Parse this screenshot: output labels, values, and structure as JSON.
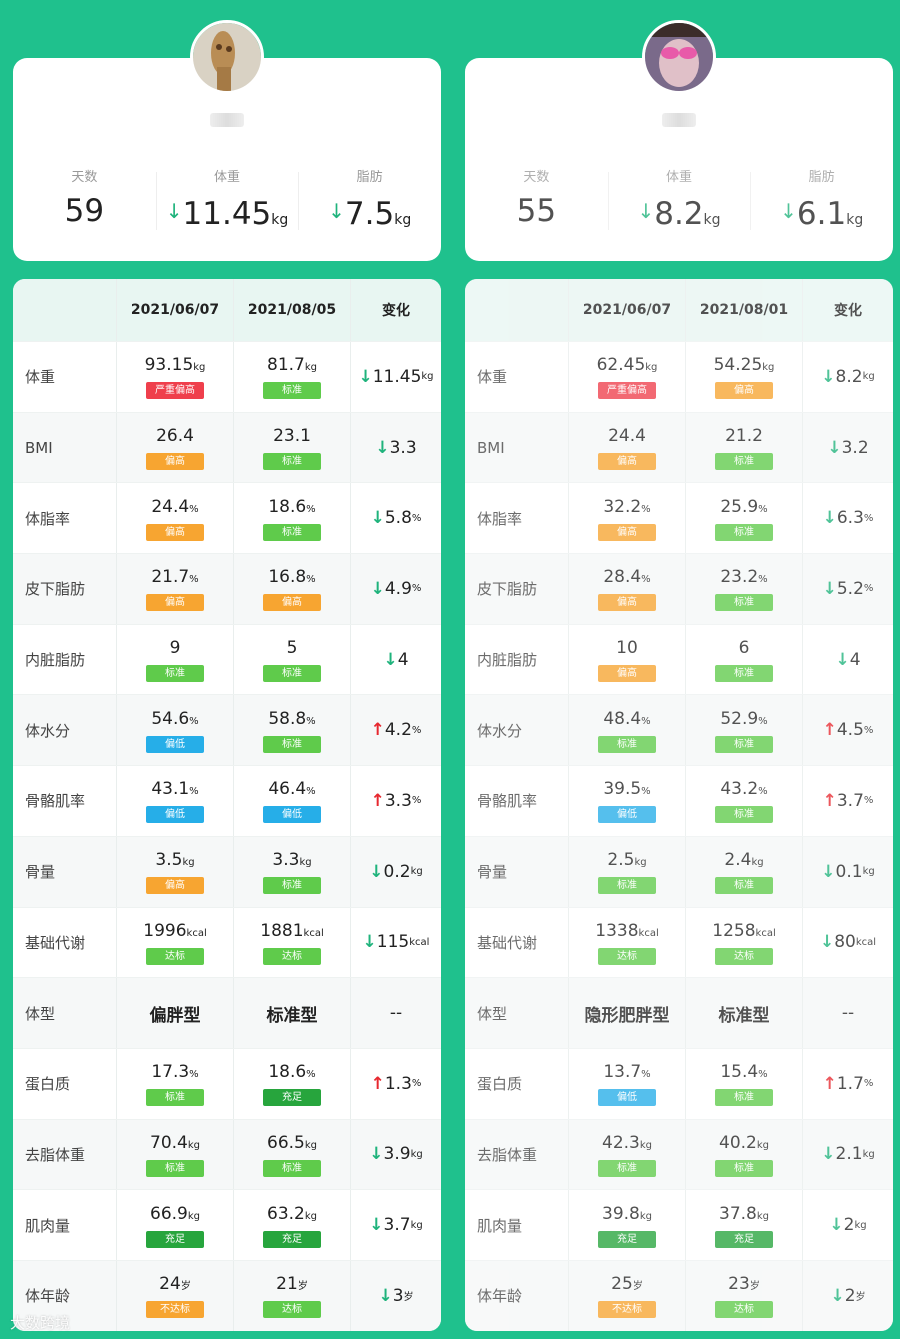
{
  "watermark": "大数跨境",
  "panels": [
    {
      "summary": {
        "days_label": "天数",
        "days_value": "59",
        "weight_label": "体重",
        "weight_value": "11.45",
        "weight_unit": "kg",
        "fat_label": "脂肪",
        "fat_value": "7.5",
        "fat_unit": "kg"
      },
      "header": {
        "date1": "2021/06/07",
        "date2": "2021/08/05",
        "change": "变化"
      },
      "rows": [
        {
          "label": "体重",
          "v1": "93.15",
          "u1": "kg",
          "b1": "严重偏高",
          "c1": "red",
          "v2": "81.7",
          "u2": "kg",
          "b2": "标准",
          "c2": "green",
          "dir": "down",
          "d": "11.45",
          "du": "kg"
        },
        {
          "label": "BMI",
          "v1": "26.4",
          "u1": "",
          "b1": "偏高",
          "c1": "orange",
          "v2": "23.1",
          "u2": "",
          "b2": "标准",
          "c2": "green",
          "dir": "down",
          "d": "3.3",
          "du": ""
        },
        {
          "label": "体脂率",
          "v1": "24.4",
          "u1": "%",
          "b1": "偏高",
          "c1": "orange",
          "v2": "18.6",
          "u2": "%",
          "b2": "标准",
          "c2": "green",
          "dir": "down",
          "d": "5.8",
          "du": "%"
        },
        {
          "label": "皮下脂肪",
          "v1": "21.7",
          "u1": "%",
          "b1": "偏高",
          "c1": "orange",
          "v2": "16.8",
          "u2": "%",
          "b2": "偏高",
          "c2": "orange",
          "dir": "down",
          "d": "4.9",
          "du": "%"
        },
        {
          "label": "内脏脂肪",
          "v1": "9",
          "u1": "",
          "b1": "标准",
          "c1": "green",
          "v2": "5",
          "u2": "",
          "b2": "标准",
          "c2": "green",
          "dir": "down",
          "d": "4",
          "du": ""
        },
        {
          "label": "体水分",
          "v1": "54.6",
          "u1": "%",
          "b1": "偏低",
          "c1": "blue",
          "v2": "58.8",
          "u2": "%",
          "b2": "标准",
          "c2": "green",
          "dir": "up",
          "d": "4.2",
          "du": "%"
        },
        {
          "label": "骨骼肌率",
          "v1": "43.1",
          "u1": "%",
          "b1": "偏低",
          "c1": "blue",
          "v2": "46.4",
          "u2": "%",
          "b2": "偏低",
          "c2": "blue",
          "dir": "up",
          "d": "3.3",
          "du": "%"
        },
        {
          "label": "骨量",
          "v1": "3.5",
          "u1": "kg",
          "b1": "偏高",
          "c1": "orange",
          "v2": "3.3",
          "u2": "kg",
          "b2": "标准",
          "c2": "green",
          "dir": "down",
          "d": "0.2",
          "du": "kg"
        },
        {
          "label": "基础代谢",
          "v1": "1996",
          "u1": "kcal",
          "b1": "达标",
          "c1": "green",
          "v2": "1881",
          "u2": "kcal",
          "b2": "达标",
          "c2": "green",
          "dir": "down",
          "d": "115",
          "du": "kcal"
        },
        {
          "label": "体型",
          "type1": "偏胖型",
          "type2": "标准型",
          "dir": "none",
          "d": "--",
          "du": ""
        },
        {
          "label": "蛋白质",
          "v1": "17.3",
          "u1": "%",
          "b1": "标准",
          "c1": "green",
          "v2": "18.6",
          "u2": "%",
          "b2": "充足",
          "c2": "dgreen",
          "dir": "up",
          "d": "1.3",
          "du": "%"
        },
        {
          "label": "去脂体重",
          "v1": "70.4",
          "u1": "kg",
          "b1": "标准",
          "c1": "green",
          "v2": "66.5",
          "u2": "kg",
          "b2": "标准",
          "c2": "green",
          "dir": "down",
          "d": "3.9",
          "du": "kg"
        },
        {
          "label": "肌肉量",
          "v1": "66.9",
          "u1": "kg",
          "b1": "充足",
          "c1": "dgreen",
          "v2": "63.2",
          "u2": "kg",
          "b2": "充足",
          "c2": "dgreen",
          "dir": "down",
          "d": "3.7",
          "du": "kg"
        },
        {
          "label": "体年龄",
          "v1": "24",
          "u1": "岁",
          "b1": "不达标",
          "c1": "orange",
          "v2": "21",
          "u2": "岁",
          "b2": "达标",
          "c2": "green",
          "dir": "down",
          "d": "3",
          "du": "岁"
        }
      ]
    },
    {
      "summary": {
        "days_label": "天数",
        "days_value": "55",
        "weight_label": "体重",
        "weight_value": "8.2",
        "weight_unit": "kg",
        "fat_label": "脂肪",
        "fat_value": "6.1",
        "fat_unit": "kg"
      },
      "header": {
        "date1": "2021/06/07",
        "date2": "2021/08/01",
        "change": "变化"
      },
      "rows": [
        {
          "label": "体重",
          "v1": "62.45",
          "u1": "kg",
          "b1": "严重偏高",
          "c1": "red",
          "v2": "54.25",
          "u2": "kg",
          "b2": "偏高",
          "c2": "orange",
          "dir": "down",
          "d": "8.2",
          "du": "kg"
        },
        {
          "label": "BMI",
          "v1": "24.4",
          "u1": "",
          "b1": "偏高",
          "c1": "orange",
          "v2": "21.2",
          "u2": "",
          "b2": "标准",
          "c2": "green",
          "dir": "down",
          "d": "3.2",
          "du": ""
        },
        {
          "label": "体脂率",
          "v1": "32.2",
          "u1": "%",
          "b1": "偏高",
          "c1": "orange",
          "v2": "25.9",
          "u2": "%",
          "b2": "标准",
          "c2": "green",
          "dir": "down",
          "d": "6.3",
          "du": "%"
        },
        {
          "label": "皮下脂肪",
          "v1": "28.4",
          "u1": "%",
          "b1": "偏高",
          "c1": "orange",
          "v2": "23.2",
          "u2": "%",
          "b2": "标准",
          "c2": "green",
          "dir": "down",
          "d": "5.2",
          "du": "%"
        },
        {
          "label": "内脏脂肪",
          "v1": "10",
          "u1": "",
          "b1": "偏高",
          "c1": "orange",
          "v2": "6",
          "u2": "",
          "b2": "标准",
          "c2": "green",
          "dir": "down",
          "d": "4",
          "du": ""
        },
        {
          "label": "体水分",
          "v1": "48.4",
          "u1": "%",
          "b1": "标准",
          "c1": "green",
          "v2": "52.9",
          "u2": "%",
          "b2": "标准",
          "c2": "green",
          "dir": "up",
          "d": "4.5",
          "du": "%"
        },
        {
          "label": "骨骼肌率",
          "v1": "39.5",
          "u1": "%",
          "b1": "偏低",
          "c1": "blue",
          "v2": "43.2",
          "u2": "%",
          "b2": "标准",
          "c2": "green",
          "dir": "up",
          "d": "3.7",
          "du": "%"
        },
        {
          "label": "骨量",
          "v1": "2.5",
          "u1": "kg",
          "b1": "标准",
          "c1": "green",
          "v2": "2.4",
          "u2": "kg",
          "b2": "标准",
          "c2": "green",
          "dir": "down",
          "d": "0.1",
          "du": "kg"
        },
        {
          "label": "基础代谢",
          "v1": "1338",
          "u1": "kcal",
          "b1": "达标",
          "c1": "green",
          "v2": "1258",
          "u2": "kcal",
          "b2": "达标",
          "c2": "green",
          "dir": "down",
          "d": "80",
          "du": "kcal"
        },
        {
          "label": "体型",
          "type1": "隐形肥胖型",
          "type2": "标准型",
          "dir": "none",
          "d": "--",
          "du": ""
        },
        {
          "label": "蛋白质",
          "v1": "13.7",
          "u1": "%",
          "b1": "偏低",
          "c1": "blue",
          "v2": "15.4",
          "u2": "%",
          "b2": "标准",
          "c2": "green",
          "dir": "up",
          "d": "1.7",
          "du": "%"
        },
        {
          "label": "去脂体重",
          "v1": "42.3",
          "u1": "kg",
          "b1": "标准",
          "c1": "green",
          "v2": "40.2",
          "u2": "kg",
          "b2": "标准",
          "c2": "green",
          "dir": "down",
          "d": "2.1",
          "du": "kg"
        },
        {
          "label": "肌肉量",
          "v1": "39.8",
          "u1": "kg",
          "b1": "充足",
          "c1": "dgreen",
          "v2": "37.8",
          "u2": "kg",
          "b2": "充足",
          "c2": "dgreen",
          "dir": "down",
          "d": "2",
          "du": "kg"
        },
        {
          "label": "体年龄",
          "v1": "25",
          "u1": "岁",
          "b1": "不达标",
          "c1": "orange",
          "v2": "23",
          "u2": "岁",
          "b2": "达标",
          "c2": "green",
          "dir": "down",
          "d": "2",
          "du": "岁"
        }
      ]
    }
  ]
}
